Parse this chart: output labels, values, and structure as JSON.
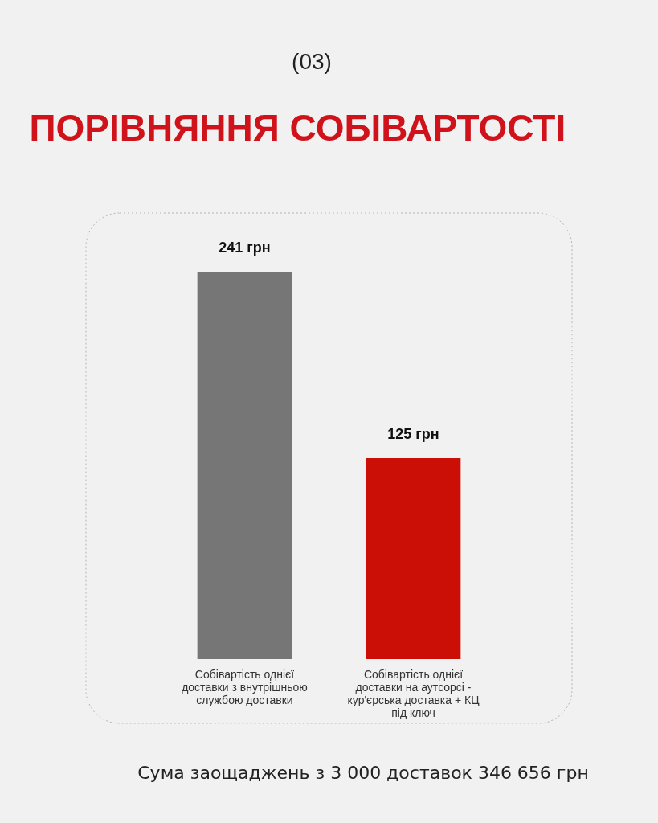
{
  "chart_data": {
    "type": "bar",
    "title": "ПОРІВНЯННЯ СОБІВАРТОСТІ",
    "subtitle": "(03)",
    "categories": [
      "Собівартість однієї доставки з внутрішньою службою доставки",
      "Собівартість однієї доставки на аутсорсі - кур'єрська доставка + КЦ під ключ"
    ],
    "values": [
      241,
      125
    ],
    "colors": [
      "#767676",
      "#cc0f06"
    ],
    "value_labels": [
      "241 грн",
      "125 грн"
    ],
    "tick_labels": "x",
    "annotations": [
      "Сума заощаджень з 3 000 доставок 346 656 грн"
    ]
  }
}
